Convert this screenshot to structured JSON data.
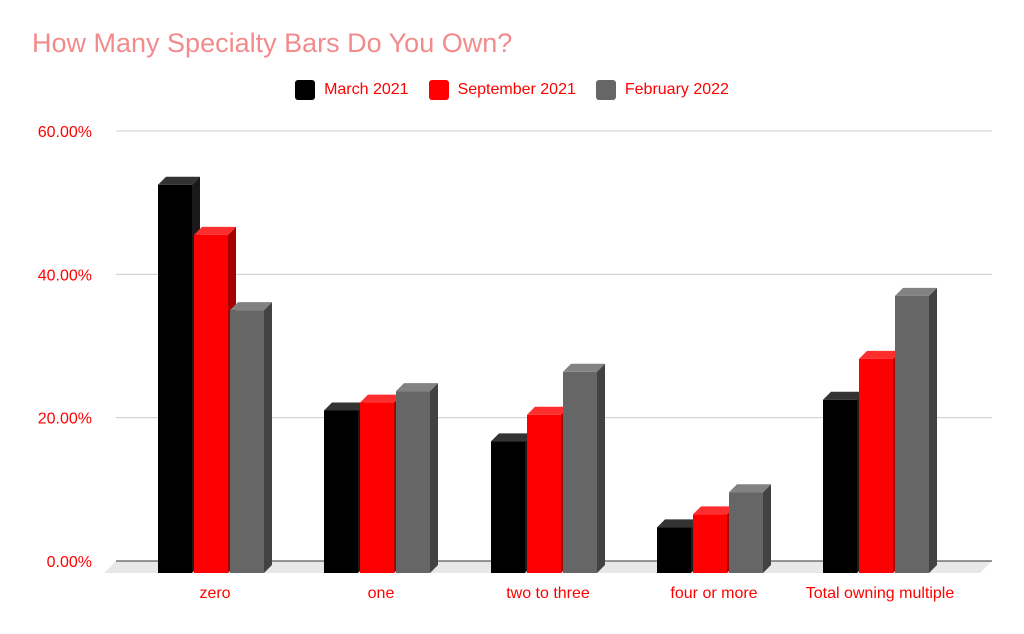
{
  "chart_data": {
    "type": "bar",
    "title": "How Many Specialty Bars Do You Own?",
    "xlabel": "",
    "ylabel": "",
    "categories": [
      "zero",
      "one",
      "two to three",
      "four or more",
      "Total owning multiple"
    ],
    "series": [
      {
        "name": "March 2021",
        "color": "#000000",
        "values": [
          52.5,
          21.0,
          16.7,
          4.7,
          22.5
        ]
      },
      {
        "name": "September 2021",
        "color": "#ff0000",
        "values": [
          45.5,
          22.1,
          20.4,
          6.5,
          28.2
        ]
      },
      {
        "name": "February 2022",
        "color": "#666666",
        "values": [
          35.0,
          23.7,
          26.4,
          9.6,
          37.0
        ]
      }
    ],
    "ylim": [
      0,
      60
    ],
    "yticks": [
      "0.00%",
      "20.00%",
      "40.00%",
      "60.00%"
    ],
    "ytick_values": [
      0,
      20,
      40,
      60
    ],
    "grid": true,
    "legend_position": "top-center",
    "style": "3d-column"
  }
}
